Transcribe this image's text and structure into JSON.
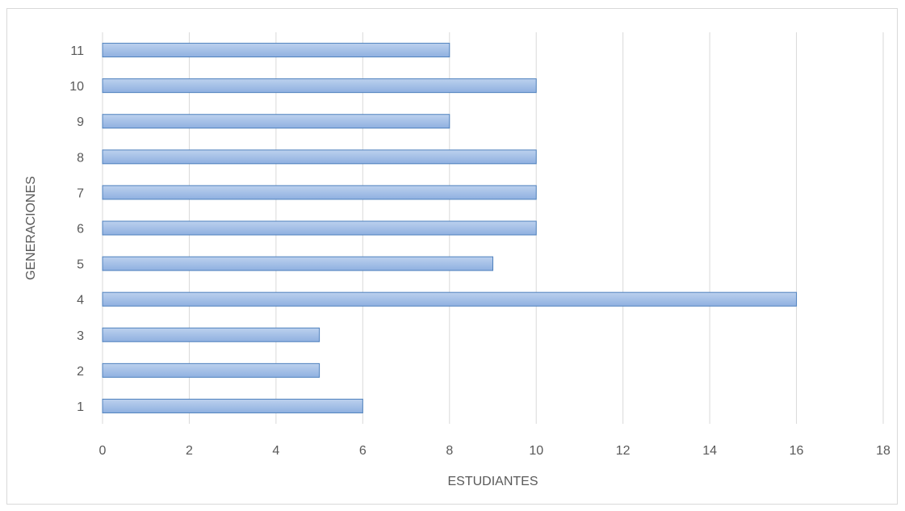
{
  "chart_data": {
    "type": "bar",
    "orientation": "horizontal",
    "categories": [
      "1",
      "2",
      "3",
      "4",
      "5",
      "6",
      "7",
      "8",
      "9",
      "10",
      "11"
    ],
    "values": [
      6,
      5,
      5,
      16,
      9,
      10,
      10,
      10,
      8,
      10,
      8
    ],
    "xlabel": "ESTUDIANTES",
    "ylabel": "GENERACIONES",
    "xlim": [
      0,
      18
    ],
    "xticks": [
      "0",
      "2",
      "4",
      "6",
      "8",
      "10",
      "12",
      "14",
      "16",
      "18"
    ],
    "grid": true,
    "legend": "none",
    "colors": {
      "bar_fill_top": "#bcd1ee",
      "bar_fill_bottom": "#8fb0e0",
      "bar_stroke": "#4f81bd",
      "grid": "#d9d9d9",
      "text": "#595959"
    }
  }
}
